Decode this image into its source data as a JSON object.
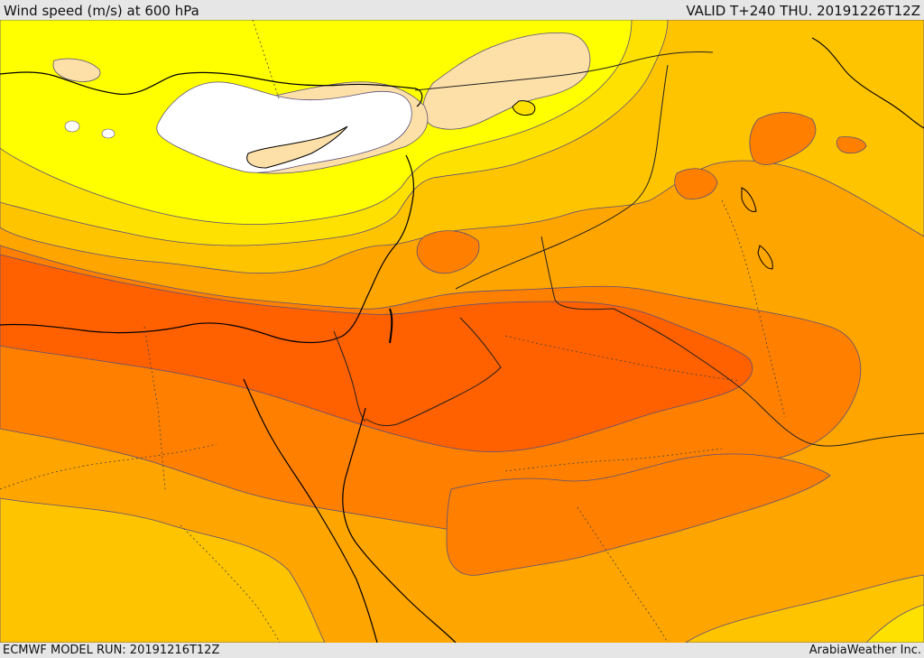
{
  "header": {
    "title": "Wind speed (m/s) at 600 hPa",
    "valid": "VALID T+240 THU. 20191226T12Z"
  },
  "footer": {
    "model_run": "ECMWF MODEL RUN: 20191216T12Z",
    "credit": "ArabiaWeather Inc."
  },
  "map": {
    "variable": "wind speed",
    "level": "600 hPa",
    "palette": {
      "calm": "#ffffff",
      "very_light": "#fde0a8",
      "light": "#ffff00",
      "moderate": "#ffe100",
      "fresh": "#ffc400",
      "strong": "#ffa500",
      "very_strong": "#ff8000",
      "max": "#ff6000"
    },
    "line_colors": {
      "coastline": "#000000",
      "border": "#222222",
      "contour": "#5a4f7a"
    }
  }
}
